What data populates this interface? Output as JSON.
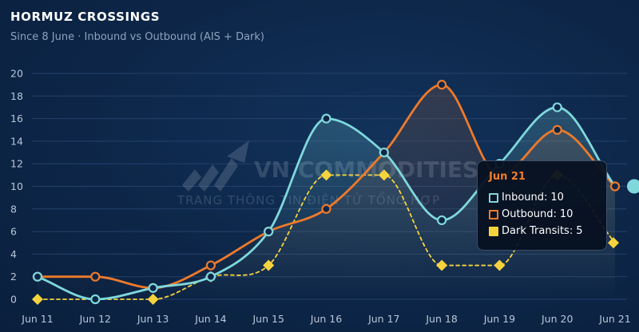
{
  "header": {
    "title": "HORMUZ CROSSINGS",
    "subtitle": "Since 8 June · Inbound vs Outbound (AIS + Dark)"
  },
  "watermark": {
    "brand": "VN COMMODITIES",
    "tagline": "TRANG THÔNG TIN ĐIỆN TỬ TỔNG HỢP"
  },
  "colors": {
    "inbound": "#7fd8dc",
    "outbound": "#ee7a2b",
    "dark": "#f6d33c",
    "grid": "#24416a",
    "background": "#0d2648"
  },
  "tooltip": {
    "date": "Jun 21",
    "rows": [
      {
        "label": "Inbound",
        "value": "10",
        "color": "#7fd8dc",
        "shape": "outline"
      },
      {
        "label": "Outbound",
        "value": "10",
        "color": "#ee7a2b",
        "shape": "outline"
      },
      {
        "label": "Dark Transits",
        "value": "5",
        "color": "#f6d33c",
        "shape": "filled"
      }
    ]
  },
  "chart_data": {
    "type": "line",
    "title": "HORMUZ CROSSINGS",
    "subtitle": "Since 8 June · Inbound vs Outbound (AIS + Dark)",
    "xlabel": "",
    "ylabel": "",
    "categories": [
      "Jun 11",
      "Jun 12",
      "Jun 13",
      "Jun 14",
      "Jun 15",
      "Jun 16",
      "Jun 17",
      "Jun 18",
      "Jun 19",
      "Jun 20",
      "Jun 21"
    ],
    "ylim": [
      0,
      20
    ],
    "yticks": [
      0,
      2,
      4,
      6,
      8,
      10,
      12,
      14,
      16,
      18,
      20
    ],
    "grid": true,
    "legend": "none",
    "series": [
      {
        "name": "Inbound",
        "values": [
          2,
          0,
          1,
          2,
          6,
          16,
          13,
          7,
          12,
          17,
          10
        ]
      },
      {
        "name": "Outbound",
        "values": [
          2,
          2,
          1,
          3,
          6,
          8,
          13,
          19,
          11,
          15,
          10
        ]
      },
      {
        "name": "Dark Transits",
        "values": [
          0,
          null,
          0,
          2,
          3,
          11,
          11,
          3,
          3,
          11,
          5
        ]
      }
    ]
  }
}
